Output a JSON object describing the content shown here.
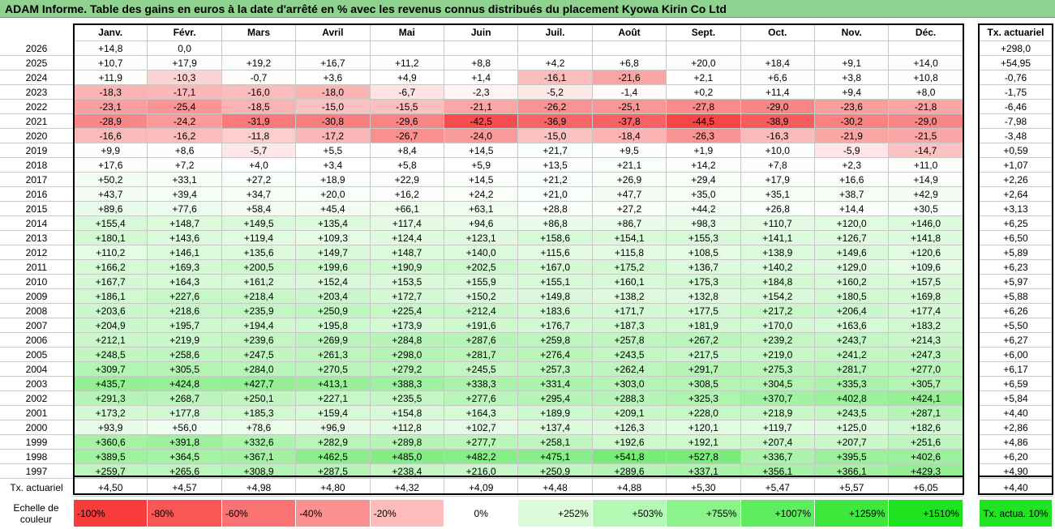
{
  "title": "ADAM Informe. Table des gains en euros à la date d'arrêté en % avec les revenus connus distribués du placement Kyowa Kirin Co Ltd",
  "table": {
    "header": [
      "Janv.",
      "Févr.",
      "Mars",
      "Avril",
      "Mai",
      "Juin",
      "Juil.",
      "Août",
      "Sept.",
      "Oct.",
      "Nov.",
      "Déc."
    ],
    "tx_header": "Tx. actuariel",
    "rows": [
      {
        "year": "2026",
        "cells": [
          "+14,8",
          "0,0",
          null,
          null,
          null,
          null,
          null,
          null,
          null,
          null,
          null,
          null
        ],
        "tx": "+298,0"
      },
      {
        "year": "2025",
        "cells": [
          "+10,7",
          "+17,9",
          "+19,2",
          "+16,7",
          "+11,2",
          "+8,8",
          "+4,2",
          "+6,8",
          "+20,0",
          "+18,4",
          "+9,1",
          "+14,0"
        ],
        "tx": "+54,95"
      },
      {
        "year": "2024",
        "cells": [
          "+11,9",
          "-10,3",
          "-0,7",
          "+3,6",
          "+4,9",
          "+1,4",
          "-16,1",
          "-21,6",
          "+2,1",
          "+6,6",
          "+3,8",
          "+10,8"
        ],
        "tx": "-0,76"
      },
      {
        "year": "2023",
        "cells": [
          "-18,3",
          "-17,1",
          "-16,0",
          "-18,0",
          "-6,7",
          "-2,3",
          "-5,2",
          "-1,4",
          "+0,2",
          "+11,4",
          "+9,4",
          "+8,0"
        ],
        "tx": "-1,75"
      },
      {
        "year": "2022",
        "cells": [
          "-23,1",
          "-25,4",
          "-18,5",
          "-15,0",
          "-15,5",
          "-21,1",
          "-26,2",
          "-25,1",
          "-27,8",
          "-29,0",
          "-23,6",
          "-21,8"
        ],
        "tx": "-6,46"
      },
      {
        "year": "2021",
        "cells": [
          "-28,9",
          "-24,2",
          "-31,9",
          "-30,8",
          "-29,6",
          "-42,5",
          "-36,9",
          "-37,8",
          "-44,5",
          "-38,9",
          "-30,2",
          "-29,0"
        ],
        "tx": "-7,98"
      },
      {
        "year": "2020",
        "cells": [
          "-16,6",
          "-16,2",
          "-11,8",
          "-17,2",
          "-26,7",
          "-24,0",
          "-15,0",
          "-18,4",
          "-26,3",
          "-16,3",
          "-21,9",
          "-21,5"
        ],
        "tx": "-3,48"
      },
      {
        "year": "2019",
        "cells": [
          "+9,9",
          "+8,6",
          "-5,7",
          "+5,5",
          "+8,4",
          "+14,5",
          "+21,7",
          "+9,5",
          "+1,9",
          "+10,0",
          "-5,9",
          "-14,7"
        ],
        "tx": "+0,59"
      },
      {
        "year": "2018",
        "cells": [
          "+17,6",
          "+7,2",
          "+4,0",
          "+3,4",
          "+5,8",
          "+5,9",
          "+13,5",
          "+21,1",
          "+14,2",
          "+7,8",
          "+2,3",
          "+11,0"
        ],
        "tx": "+1,07"
      },
      {
        "year": "2017",
        "cells": [
          "+50,2",
          "+33,1",
          "+27,2",
          "+18,9",
          "+22,9",
          "+14,5",
          "+21,2",
          "+26,9",
          "+29,4",
          "+17,9",
          "+16,6",
          "+14,9"
        ],
        "tx": "+2,26"
      },
      {
        "year": "2016",
        "cells": [
          "+43,7",
          "+39,4",
          "+34,7",
          "+20,0",
          "+16,2",
          "+24,2",
          "+21,0",
          "+47,7",
          "+35,0",
          "+35,1",
          "+38,7",
          "+42,9"
        ],
        "tx": "+2,64"
      },
      {
        "year": "2015",
        "cells": [
          "+89,6",
          "+77,6",
          "+58,4",
          "+45,4",
          "+66,1",
          "+63,1",
          "+28,8",
          "+27,2",
          "+44,2",
          "+26,8",
          "+14,4",
          "+30,5"
        ],
        "tx": "+3,13"
      },
      {
        "year": "2014",
        "cells": [
          "+155,4",
          "+148,7",
          "+149,5",
          "+135,4",
          "+117,4",
          "+94,6",
          "+86,8",
          "+86,7",
          "+98,3",
          "+110,7",
          "+120,0",
          "+146,0"
        ],
        "tx": "+6,25"
      },
      {
        "year": "2013",
        "cells": [
          "+180,1",
          "+143,6",
          "+119,4",
          "+109,3",
          "+124,4",
          "+123,1",
          "+158,6",
          "+154,1",
          "+155,3",
          "+141,1",
          "+126,7",
          "+141,8"
        ],
        "tx": "+6,50"
      },
      {
        "year": "2012",
        "cells": [
          "+110,2",
          "+146,1",
          "+135,6",
          "+149,7",
          "+148,7",
          "+140,0",
          "+115,6",
          "+115,8",
          "+108,5",
          "+138,9",
          "+149,6",
          "+120,6"
        ],
        "tx": "+5,89"
      },
      {
        "year": "2011",
        "cells": [
          "+166,2",
          "+169,3",
          "+200,5",
          "+199,6",
          "+190,9",
          "+202,5",
          "+167,0",
          "+175,2",
          "+136,7",
          "+140,2",
          "+129,0",
          "+109,6"
        ],
        "tx": "+6,23"
      },
      {
        "year": "2010",
        "cells": [
          "+167,7",
          "+164,3",
          "+161,2",
          "+152,4",
          "+153,5",
          "+155,9",
          "+155,1",
          "+160,1",
          "+175,3",
          "+184,8",
          "+160,2",
          "+157,5"
        ],
        "tx": "+5,97"
      },
      {
        "year": "2009",
        "cells": [
          "+186,1",
          "+227,6",
          "+218,4",
          "+203,4",
          "+172,7",
          "+150,2",
          "+149,8",
          "+138,2",
          "+132,8",
          "+154,2",
          "+180,5",
          "+169,8"
        ],
        "tx": "+5,88"
      },
      {
        "year": "2008",
        "cells": [
          "+203,6",
          "+218,6",
          "+235,9",
          "+250,9",
          "+225,4",
          "+212,4",
          "+183,6",
          "+171,7",
          "+177,5",
          "+217,2",
          "+206,4",
          "+177,4"
        ],
        "tx": "+6,26"
      },
      {
        "year": "2007",
        "cells": [
          "+204,9",
          "+195,7",
          "+194,4",
          "+195,8",
          "+173,9",
          "+191,6",
          "+176,7",
          "+187,3",
          "+181,9",
          "+170,0",
          "+163,6",
          "+183,2"
        ],
        "tx": "+5,50"
      },
      {
        "year": "2006",
        "cells": [
          "+212,1",
          "+219,9",
          "+239,6",
          "+269,9",
          "+284,8",
          "+287,6",
          "+259,8",
          "+257,8",
          "+267,2",
          "+239,2",
          "+243,7",
          "+214,3"
        ],
        "tx": "+6,27"
      },
      {
        "year": "2005",
        "cells": [
          "+248,5",
          "+258,6",
          "+247,5",
          "+261,3",
          "+298,0",
          "+281,7",
          "+276,4",
          "+243,5",
          "+217,5",
          "+219,0",
          "+241,2",
          "+247,3"
        ],
        "tx": "+6,00"
      },
      {
        "year": "2004",
        "cells": [
          "+309,7",
          "+305,5",
          "+284,0",
          "+270,5",
          "+279,2",
          "+245,5",
          "+257,3",
          "+262,4",
          "+291,7",
          "+275,3",
          "+281,7",
          "+277,0"
        ],
        "tx": "+6,17"
      },
      {
        "year": "2003",
        "cells": [
          "+435,7",
          "+424,8",
          "+427,7",
          "+413,1",
          "+388,3",
          "+338,3",
          "+331,4",
          "+303,0",
          "+308,5",
          "+304,5",
          "+335,3",
          "+305,7"
        ],
        "tx": "+6,59"
      },
      {
        "year": "2002",
        "cells": [
          "+291,3",
          "+268,7",
          "+250,1",
          "+227,1",
          "+235,5",
          "+277,6",
          "+295,4",
          "+288,3",
          "+325,3",
          "+370,7",
          "+402,8",
          "+424,1"
        ],
        "tx": "+5,84"
      },
      {
        "year": "2001",
        "cells": [
          "+173,2",
          "+177,8",
          "+185,3",
          "+159,4",
          "+154,8",
          "+164,3",
          "+189,9",
          "+209,1",
          "+228,0",
          "+218,9",
          "+243,5",
          "+287,1"
        ],
        "tx": "+4,40"
      },
      {
        "year": "2000",
        "cells": [
          "+93,9",
          "+56,0",
          "+78,6",
          "+96,9",
          "+112,8",
          "+102,7",
          "+137,4",
          "+126,3",
          "+120,1",
          "+119,7",
          "+125,0",
          "+182,6"
        ],
        "tx": "+2,86"
      },
      {
        "year": "1999",
        "cells": [
          "+360,6",
          "+391,8",
          "+332,6",
          "+282,9",
          "+289,8",
          "+277,7",
          "+258,1",
          "+192,6",
          "+192,1",
          "+207,4",
          "+207,7",
          "+251,6"
        ],
        "tx": "+4,86"
      },
      {
        "year": "1998",
        "cells": [
          "+389,5",
          "+364,5",
          "+367,1",
          "+462,5",
          "+485,0",
          "+482,2",
          "+475,1",
          "+541,8",
          "+527,8",
          "+336,7",
          "+395,5",
          "+402,6"
        ],
        "tx": "+6,20"
      },
      {
        "year": "1997",
        "cells": [
          "+259,7",
          "+265,6",
          "+308,9",
          "+287,5",
          "+238,4",
          "+216,0",
          "+250,9",
          "+289,6",
          "+337,1",
          "+356,1",
          "+366,1",
          "+429,3"
        ],
        "tx": "+4,90"
      }
    ],
    "footer": {
      "label": "Tx. actuariel",
      "cells": [
        "+4,50",
        "+4,57",
        "+4,98",
        "+4,80",
        "+4,32",
        "+4,09",
        "+4,48",
        "+4,88",
        "+5,30",
        "+5,47",
        "+5,57",
        "+6,05"
      ],
      "tx": "+4,40"
    }
  },
  "legend": {
    "label": "Echelle de couleur",
    "items": [
      {
        "label": "-100%",
        "color": "#f83b3b"
      },
      {
        "label": "-80%",
        "color": "#f95656"
      },
      {
        "label": "-60%",
        "color": "#fa7272"
      },
      {
        "label": "-40%",
        "color": "#fb9090"
      },
      {
        "label": "-20%",
        "color": "#fdbcbc"
      },
      {
        "label": "0%",
        "color": "#ffffff"
      },
      {
        "label": "+252%",
        "color": "#dcfcdc"
      },
      {
        "label": "+503%",
        "color": "#b3f8b3"
      },
      {
        "label": "+755%",
        "color": "#8af38a"
      },
      {
        "label": "+1007%",
        "color": "#5eed5e"
      },
      {
        "label": "+1259%",
        "color": "#3de83d"
      },
      {
        "label": "+1510%",
        "color": "#1fe31f"
      }
    ],
    "tx": {
      "label": "Tx. actua. 10%",
      "color": "#22e322"
    }
  }
}
